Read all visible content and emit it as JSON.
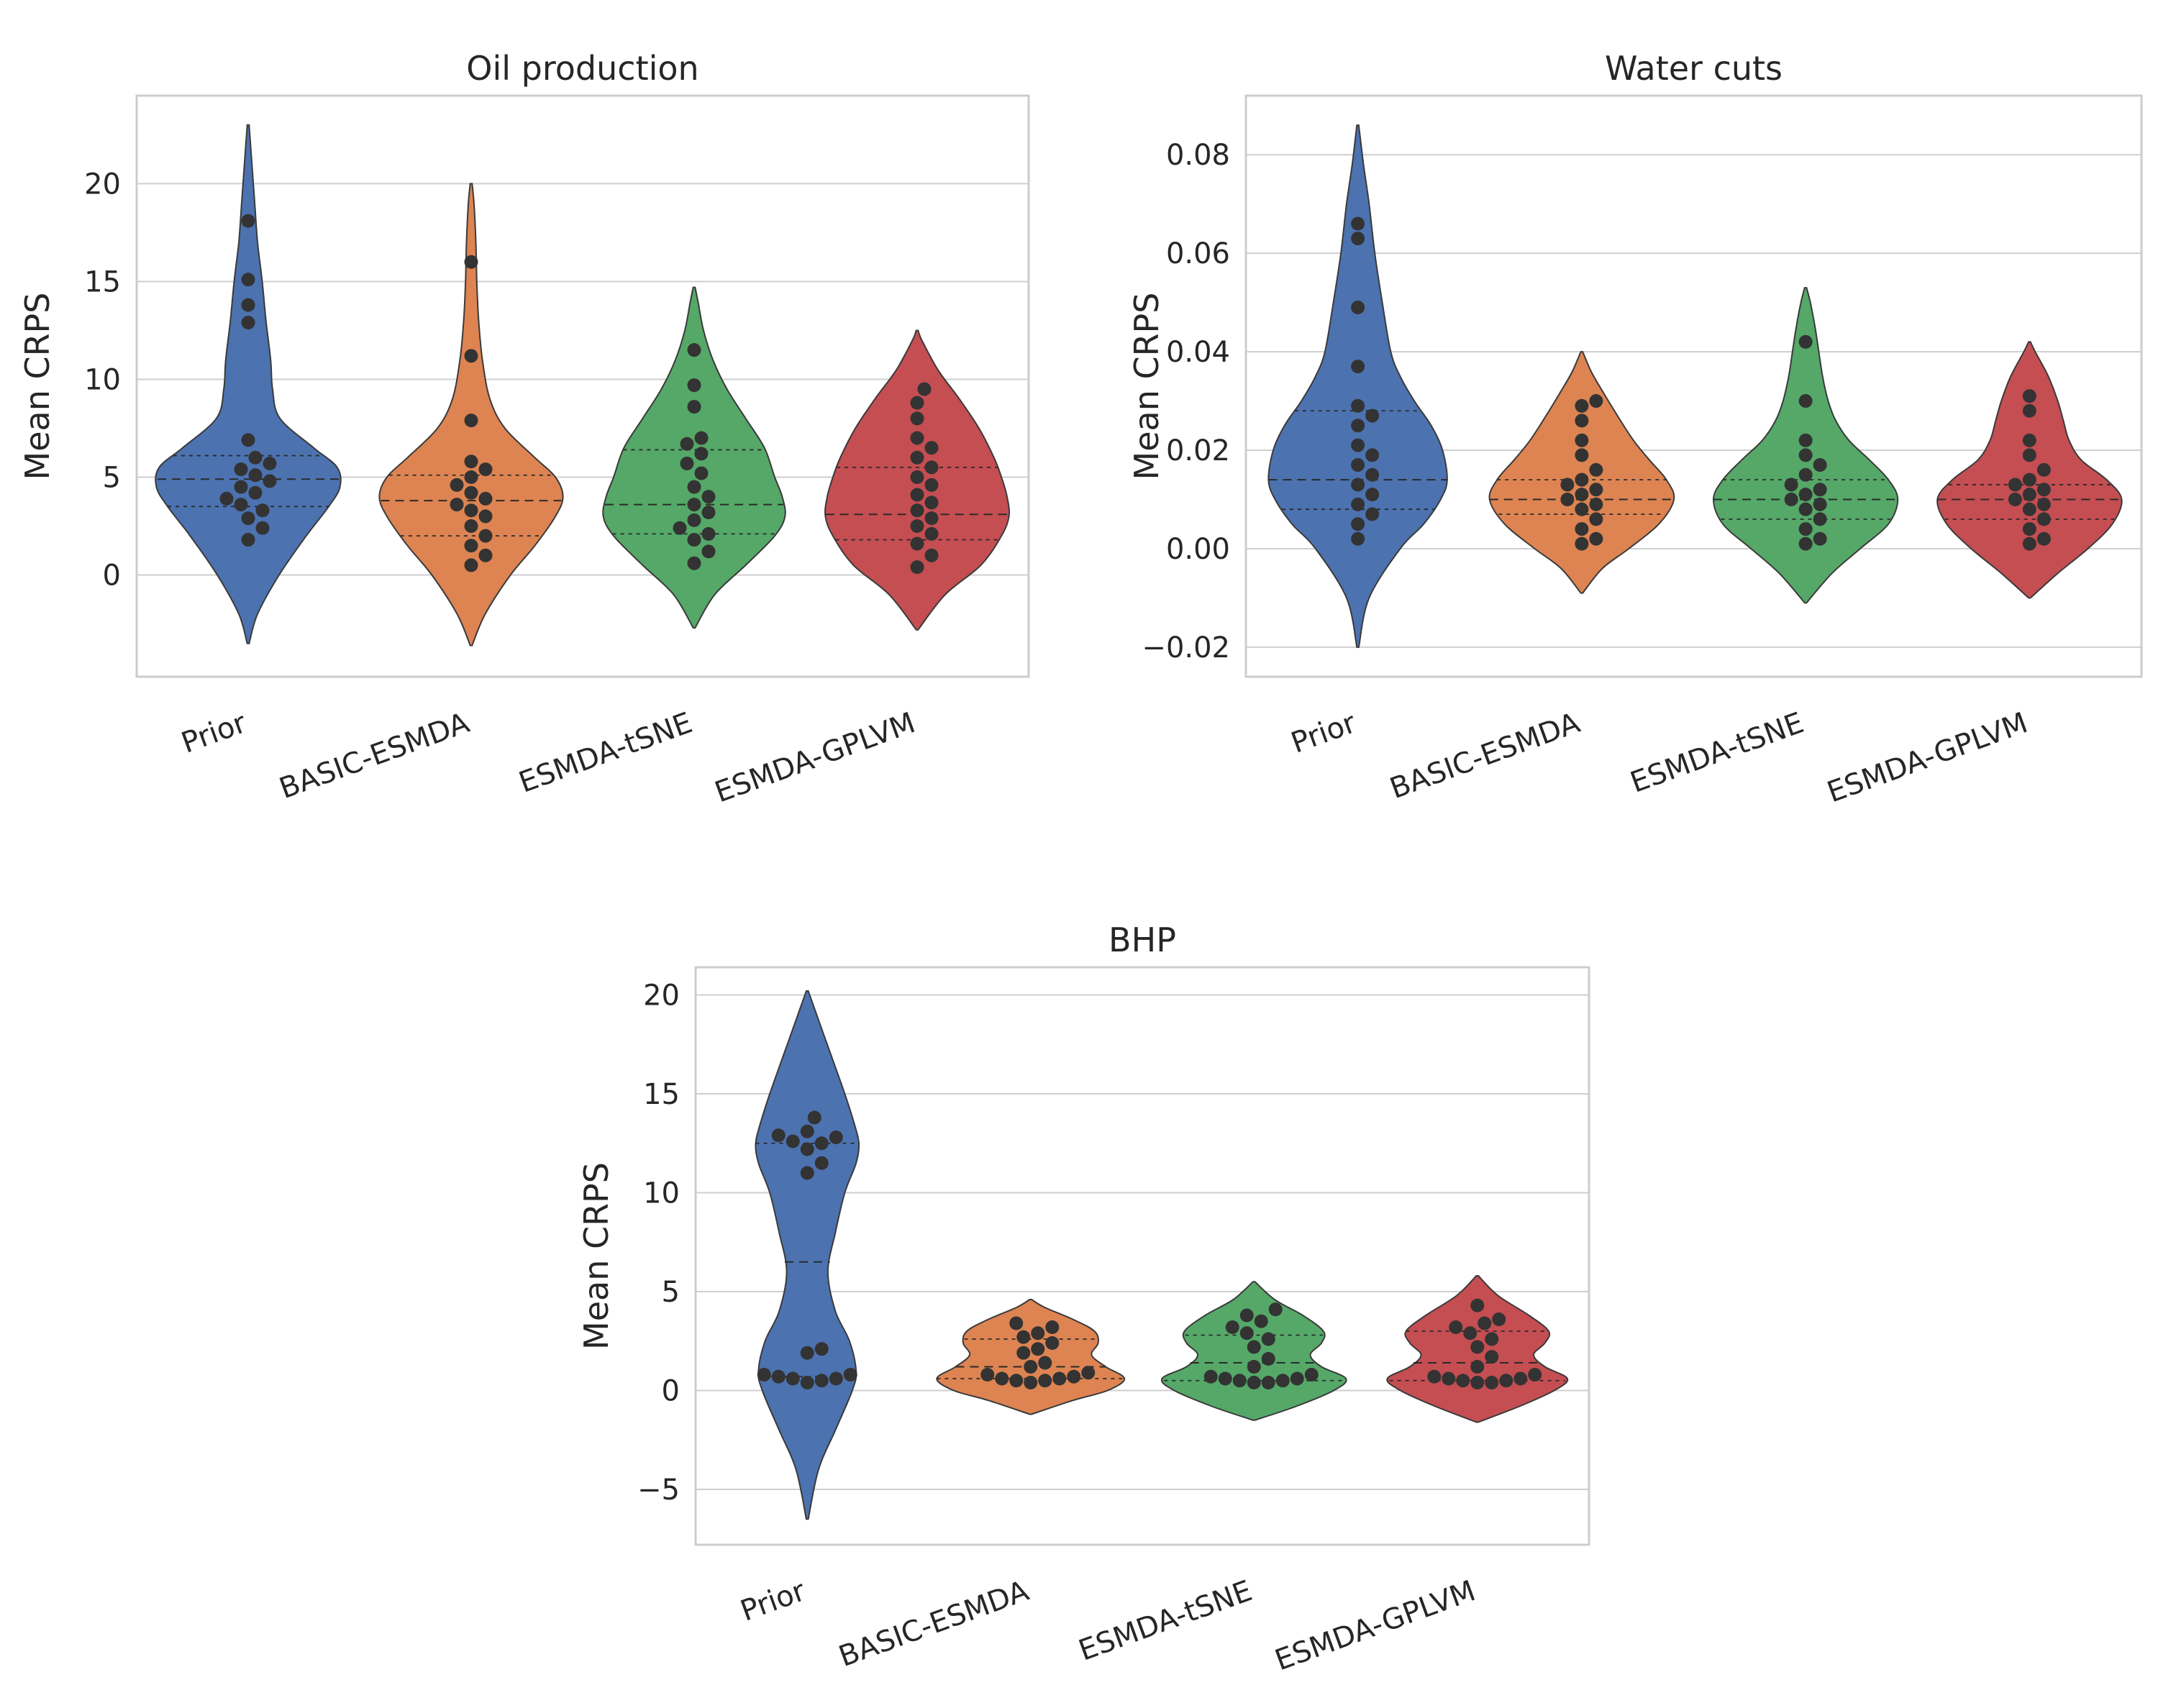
{
  "figure": {
    "ylabel": "Mean CRPS"
  },
  "colors": {
    "Prior": "#4c72b0",
    "BASIC-ESMDA": "#dd8452",
    "ESMDA-tSNE": "#55a868",
    "ESMDA-GPLVM": "#c44e52"
  },
  "chart_data": [
    {
      "type": "violin",
      "title": "Oil production",
      "ylabel": "Mean CRPS",
      "categories": [
        "Prior",
        "BASIC-ESMDA",
        "ESMDA-tSNE",
        "ESMDA-GPLVM"
      ],
      "ylim": [
        -5.2,
        24.5
      ],
      "yticks": [
        0,
        5,
        10,
        15,
        20
      ],
      "ytick_labels": [
        "0",
        "5",
        "10",
        "15",
        "20"
      ],
      "grid": true,
      "violins": [
        {
          "range": [
            -3.5,
            23
          ],
          "profile": [
            [
              -3.5,
              0.01
            ],
            [
              -2,
              0.1
            ],
            [
              0,
              0.33
            ],
            [
              2,
              0.62
            ],
            [
              3.5,
              0.86
            ],
            [
              4.5,
              0.98
            ],
            [
              5.5,
              0.95
            ],
            [
              6.5,
              0.7
            ],
            [
              8,
              0.34
            ],
            [
              9.5,
              0.26
            ],
            [
              11,
              0.24
            ],
            [
              13,
              0.19
            ],
            [
              15,
              0.15
            ],
            [
              17,
              0.1
            ],
            [
              19,
              0.07
            ],
            [
              21,
              0.04
            ],
            [
              23,
              0.01
            ]
          ],
          "quartiles": [
            3.5,
            4.9,
            6.1
          ],
          "points": [
            1.8,
            2.4,
            2.9,
            3.3,
            3.6,
            3.9,
            4.2,
            4.5,
            4.8,
            5.1,
            5.4,
            5.7,
            6.0,
            6.9,
            12.9,
            13.8,
            15.1,
            18.1
          ]
        },
        {
          "range": [
            -3.6,
            20
          ],
          "profile": [
            [
              -3.6,
              0.01
            ],
            [
              -2,
              0.15
            ],
            [
              0,
              0.42
            ],
            [
              1.5,
              0.68
            ],
            [
              3,
              0.9
            ],
            [
              4,
              0.98
            ],
            [
              5,
              0.9
            ],
            [
              6,
              0.68
            ],
            [
              7.5,
              0.36
            ],
            [
              9,
              0.2
            ],
            [
              11,
              0.12
            ],
            [
              13,
              0.08
            ],
            [
              15,
              0.06
            ],
            [
              17,
              0.05
            ],
            [
              19,
              0.03
            ],
            [
              20,
              0.01
            ]
          ],
          "quartiles": [
            2.0,
            3.8,
            5.1
          ],
          "points": [
            0.5,
            1.0,
            1.5,
            2.0,
            2.5,
            3.0,
            3.3,
            3.6,
            3.9,
            4.2,
            4.6,
            5.0,
            5.4,
            5.8,
            7.9,
            11.2,
            16.0
          ]
        },
        {
          "range": [
            -2.7,
            14.7
          ],
          "profile": [
            [
              -2.7,
              0.01
            ],
            [
              -1,
              0.22
            ],
            [
              0.5,
              0.55
            ],
            [
              2,
              0.86
            ],
            [
              3,
              0.97
            ],
            [
              4,
              0.94
            ],
            [
              5,
              0.86
            ],
            [
              6.5,
              0.75
            ],
            [
              8,
              0.55
            ],
            [
              9.5,
              0.35
            ],
            [
              11,
              0.2
            ],
            [
              12.5,
              0.1
            ],
            [
              14,
              0.04
            ],
            [
              14.7,
              0.01
            ]
          ],
          "quartiles": [
            2.1,
            3.6,
            6.4
          ],
          "points": [
            0.6,
            1.2,
            1.8,
            2.1,
            2.4,
            2.8,
            3.2,
            3.6,
            4.0,
            4.5,
            5.2,
            5.7,
            6.2,
            6.7,
            7.0,
            8.6,
            9.7,
            11.5
          ]
        },
        {
          "range": [
            -2.8,
            12.5
          ],
          "profile": [
            [
              -2.8,
              0.01
            ],
            [
              -1,
              0.3
            ],
            [
              0.5,
              0.68
            ],
            [
              2,
              0.9
            ],
            [
              3,
              0.98
            ],
            [
              4,
              0.96
            ],
            [
              5,
              0.9
            ],
            [
              6,
              0.82
            ],
            [
              7.5,
              0.66
            ],
            [
              9,
              0.45
            ],
            [
              10.5,
              0.22
            ],
            [
              12,
              0.05
            ],
            [
              12.5,
              0.01
            ]
          ],
          "quartiles": [
            1.8,
            3.1,
            5.5
          ],
          "points": [
            0.4,
            1.0,
            1.6,
            2.1,
            2.5,
            2.9,
            3.3,
            3.7,
            4.1,
            4.6,
            5.0,
            5.5,
            6.0,
            6.5,
            7.0,
            8.0,
            8.8,
            9.5
          ]
        }
      ]
    },
    {
      "type": "violin",
      "title": "Water cuts",
      "ylabel": "Mean CRPS",
      "categories": [
        "Prior",
        "BASIC-ESMDA",
        "ESMDA-tSNE",
        "ESMDA-GPLVM"
      ],
      "ylim": [
        -0.026,
        0.092
      ],
      "yticks": [
        -0.02,
        0.0,
        0.02,
        0.04,
        0.06,
        0.08
      ],
      "ytick_labels": [
        "−0.02",
        "0.00",
        "0.02",
        "0.04",
        "0.06",
        "0.08"
      ],
      "grid": true,
      "violins": [
        {
          "range": [
            -0.02,
            0.086
          ],
          "profile": [
            [
              -0.02,
              0.01
            ],
            [
              -0.01,
              0.12
            ],
            [
              0,
              0.45
            ],
            [
              0.005,
              0.7
            ],
            [
              0.01,
              0.88
            ],
            [
              0.014,
              0.95
            ],
            [
              0.02,
              0.9
            ],
            [
              0.025,
              0.78
            ],
            [
              0.03,
              0.6
            ],
            [
              0.035,
              0.45
            ],
            [
              0.04,
              0.35
            ],
            [
              0.05,
              0.26
            ],
            [
              0.06,
              0.18
            ],
            [
              0.07,
              0.12
            ],
            [
              0.078,
              0.06
            ],
            [
              0.086,
              0.01
            ]
          ],
          "quartiles": [
            0.008,
            0.014,
            0.028
          ],
          "points": [
            0.002,
            0.005,
            0.007,
            0.009,
            0.011,
            0.013,
            0.015,
            0.017,
            0.019,
            0.021,
            0.025,
            0.027,
            0.029,
            0.037,
            0.049,
            0.063,
            0.066
          ]
        },
        {
          "range": [
            -0.009,
            0.04
          ],
          "profile": [
            [
              -0.009,
              0.01
            ],
            [
              -0.004,
              0.22
            ],
            [
              0,
              0.5
            ],
            [
              0.005,
              0.82
            ],
            [
              0.01,
              0.98
            ],
            [
              0.014,
              0.9
            ],
            [
              0.018,
              0.72
            ],
            [
              0.022,
              0.55
            ],
            [
              0.027,
              0.38
            ],
            [
              0.032,
              0.22
            ],
            [
              0.036,
              0.1
            ],
            [
              0.04,
              0.01
            ]
          ],
          "quartiles": [
            0.007,
            0.01,
            0.014
          ],
          "points": [
            0.001,
            0.002,
            0.004,
            0.006,
            0.008,
            0.009,
            0.01,
            0.011,
            0.012,
            0.013,
            0.014,
            0.016,
            0.019,
            0.022,
            0.026,
            0.029,
            0.03
          ]
        },
        {
          "range": [
            -0.011,
            0.053
          ],
          "profile": [
            [
              -0.011,
              0.01
            ],
            [
              -0.005,
              0.28
            ],
            [
              0,
              0.58
            ],
            [
              0.005,
              0.88
            ],
            [
              0.01,
              0.98
            ],
            [
              0.014,
              0.88
            ],
            [
              0.018,
              0.68
            ],
            [
              0.022,
              0.46
            ],
            [
              0.026,
              0.32
            ],
            [
              0.03,
              0.24
            ],
            [
              0.035,
              0.18
            ],
            [
              0.04,
              0.14
            ],
            [
              0.045,
              0.1
            ],
            [
              0.05,
              0.05
            ],
            [
              0.053,
              0.01
            ]
          ],
          "quartiles": [
            0.006,
            0.01,
            0.014
          ],
          "points": [
            0.001,
            0.002,
            0.004,
            0.006,
            0.008,
            0.009,
            0.01,
            0.011,
            0.012,
            0.013,
            0.015,
            0.017,
            0.019,
            0.022,
            0.03,
            0.042
          ]
        },
        {
          "range": [
            -0.01,
            0.042
          ],
          "profile": [
            [
              -0.01,
              0.01
            ],
            [
              -0.005,
              0.3
            ],
            [
              0,
              0.62
            ],
            [
              0.005,
              0.88
            ],
            [
              0.01,
              0.98
            ],
            [
              0.014,
              0.82
            ],
            [
              0.018,
              0.55
            ],
            [
              0.022,
              0.42
            ],
            [
              0.026,
              0.36
            ],
            [
              0.03,
              0.3
            ],
            [
              0.035,
              0.2
            ],
            [
              0.04,
              0.06
            ],
            [
              0.042,
              0.01
            ]
          ],
          "quartiles": [
            0.006,
            0.01,
            0.013
          ],
          "points": [
            0.001,
            0.002,
            0.004,
            0.006,
            0.008,
            0.009,
            0.01,
            0.011,
            0.012,
            0.013,
            0.014,
            0.016,
            0.019,
            0.022,
            0.028,
            0.031
          ]
        }
      ]
    },
    {
      "type": "violin",
      "title": "BHP",
      "ylabel": "Mean CRPS",
      "categories": [
        "Prior",
        "BASIC-ESMDA",
        "ESMDA-tSNE",
        "ESMDA-GPLVM"
      ],
      "ylim": [
        -7.8,
        21.4
      ],
      "yticks": [
        -5,
        0,
        5,
        10,
        15,
        20
      ],
      "ytick_labels": [
        "−5",
        "0",
        "5",
        "10",
        "15",
        "20"
      ],
      "grid": true,
      "violins": [
        {
          "range": [
            -6.5,
            20.2
          ],
          "profile": [
            [
              -6.5,
              0.01
            ],
            [
              -4,
              0.12
            ],
            [
              -2,
              0.3
            ],
            [
              0,
              0.48
            ],
            [
              1,
              0.52
            ],
            [
              2.5,
              0.45
            ],
            [
              4,
              0.3
            ],
            [
              6,
              0.22
            ],
            [
              8,
              0.3
            ],
            [
              10,
              0.4
            ],
            [
              11.5,
              0.52
            ],
            [
              12.5,
              0.55
            ],
            [
              13.5,
              0.5
            ],
            [
              15,
              0.4
            ],
            [
              17,
              0.25
            ],
            [
              19,
              0.1
            ],
            [
              20.2,
              0.01
            ]
          ],
          "quartiles": [
            0.7,
            6.5,
            12.5
          ],
          "points": [
            0.4,
            0.5,
            0.6,
            0.6,
            0.7,
            0.8,
            0.8,
            1.9,
            2.1,
            11.0,
            11.5,
            12.2,
            12.5,
            12.6,
            12.8,
            12.9,
            13.1,
            13.8
          ]
        },
        {
          "range": [
            -1.2,
            4.6
          ],
          "profile": [
            [
              -1.2,
              0.01
            ],
            [
              -0.5,
              0.45
            ],
            [
              0,
              0.82
            ],
            [
              0.6,
              1.0
            ],
            [
              1.2,
              0.8
            ],
            [
              1.8,
              0.65
            ],
            [
              2.4,
              0.72
            ],
            [
              3,
              0.68
            ],
            [
              3.6,
              0.45
            ],
            [
              4.2,
              0.15
            ],
            [
              4.6,
              0.01
            ]
          ],
          "quartiles": [
            0.6,
            1.2,
            2.6
          ],
          "points": [
            0.4,
            0.5,
            0.5,
            0.6,
            0.6,
            0.7,
            0.8,
            0.9,
            1.2,
            1.4,
            1.9,
            2.1,
            2.4,
            2.7,
            2.9,
            3.2,
            3.4
          ]
        },
        {
          "range": [
            -1.5,
            5.5
          ],
          "profile": [
            [
              -1.5,
              0.01
            ],
            [
              -0.8,
              0.45
            ],
            [
              0,
              0.85
            ],
            [
              0.6,
              0.98
            ],
            [
              1.2,
              0.72
            ],
            [
              1.8,
              0.6
            ],
            [
              2.4,
              0.72
            ],
            [
              3,
              0.74
            ],
            [
              3.8,
              0.52
            ],
            [
              4.6,
              0.22
            ],
            [
              5.5,
              0.01
            ]
          ],
          "quartiles": [
            0.5,
            1.4,
            2.8
          ],
          "points": [
            0.4,
            0.4,
            0.5,
            0.5,
            0.6,
            0.6,
            0.7,
            0.8,
            1.2,
            1.6,
            2.2,
            2.6,
            2.9,
            3.2,
            3.5,
            3.8,
            4.1
          ]
        },
        {
          "range": [
            -1.6,
            5.8
          ],
          "profile": [
            [
              -1.6,
              0.01
            ],
            [
              -0.8,
              0.45
            ],
            [
              0,
              0.82
            ],
            [
              0.6,
              0.96
            ],
            [
              1.2,
              0.72
            ],
            [
              1.8,
              0.6
            ],
            [
              2.4,
              0.72
            ],
            [
              3,
              0.76
            ],
            [
              3.8,
              0.55
            ],
            [
              4.8,
              0.22
            ],
            [
              5.8,
              0.01
            ]
          ],
          "quartiles": [
            0.5,
            1.4,
            3.0
          ],
          "points": [
            0.4,
            0.4,
            0.5,
            0.5,
            0.6,
            0.6,
            0.7,
            0.8,
            1.2,
            1.7,
            2.2,
            2.6,
            2.9,
            3.2,
            3.4,
            3.6,
            4.3
          ]
        }
      ]
    }
  ]
}
